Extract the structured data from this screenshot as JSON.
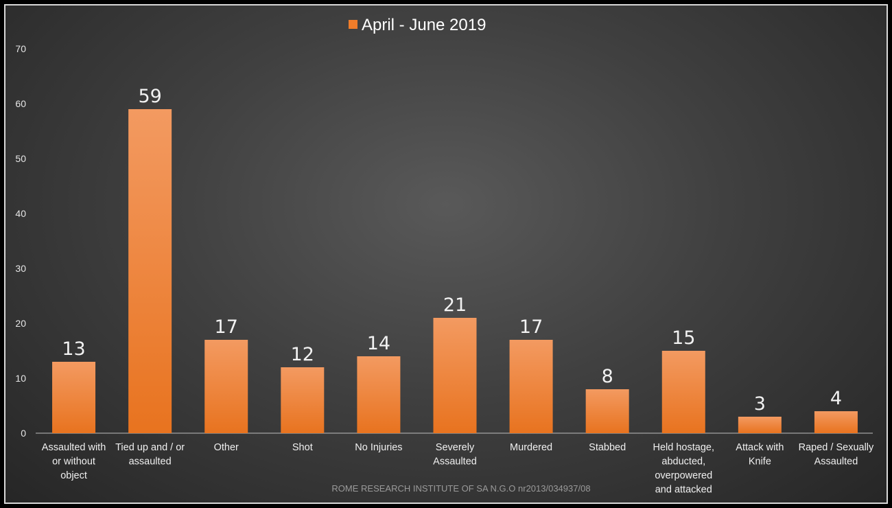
{
  "chart_data": {
    "type": "bar",
    "series": [
      {
        "name": "April - June 2019",
        "color": "#f07d2a",
        "values": [
          13,
          59,
          17,
          12,
          14,
          21,
          17,
          8,
          15,
          3,
          4
        ]
      }
    ],
    "categories": [
      [
        "Assaulted with",
        "or without",
        "object"
      ],
      [
        "Tied up and / or",
        "assaulted"
      ],
      [
        "Other"
      ],
      [
        "Shot"
      ],
      [
        "No Injuries"
      ],
      [
        "Severely",
        "Assaulted"
      ],
      [
        "Murdered"
      ],
      [
        "Stabbed"
      ],
      [
        "Held hostage,",
        "abducted,",
        "overpowered",
        "and attacked"
      ],
      [
        "Attack with",
        "Knife"
      ],
      [
        "Raped / Sexually",
        "Assaulted"
      ]
    ],
    "data_labels": [
      "13",
      "59",
      "17",
      "12",
      "14",
      "21",
      "17",
      "8",
      "15",
      "3",
      "4"
    ],
    "ylim": [
      0,
      70
    ],
    "yticks": [
      "0",
      "10",
      "20",
      "30",
      "40",
      "50",
      "60",
      "70"
    ],
    "grid": false,
    "legend": "top-center",
    "source_note": "ROME RESEARCH INSTITUTE OF SA N.G.O nr2013/034937/08"
  }
}
